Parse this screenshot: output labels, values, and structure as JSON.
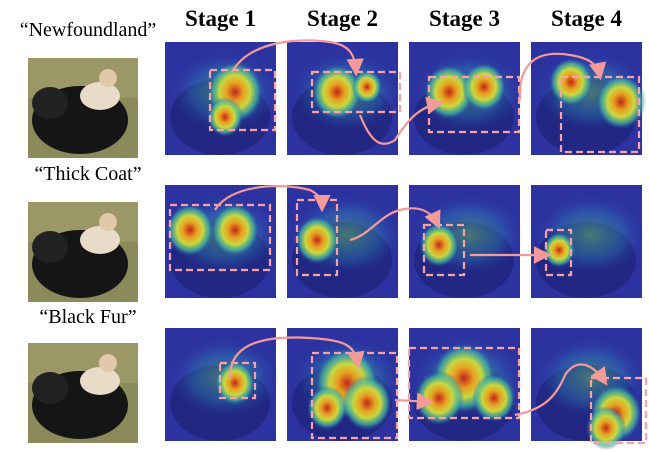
{
  "column_headers": [
    "Stage 1",
    "Stage 2",
    "Stage 3",
    "Stage 4"
  ],
  "row_labels": [
    "“Newfoundland”",
    "“Thick Coat”",
    "“Black Fur”"
  ]
}
